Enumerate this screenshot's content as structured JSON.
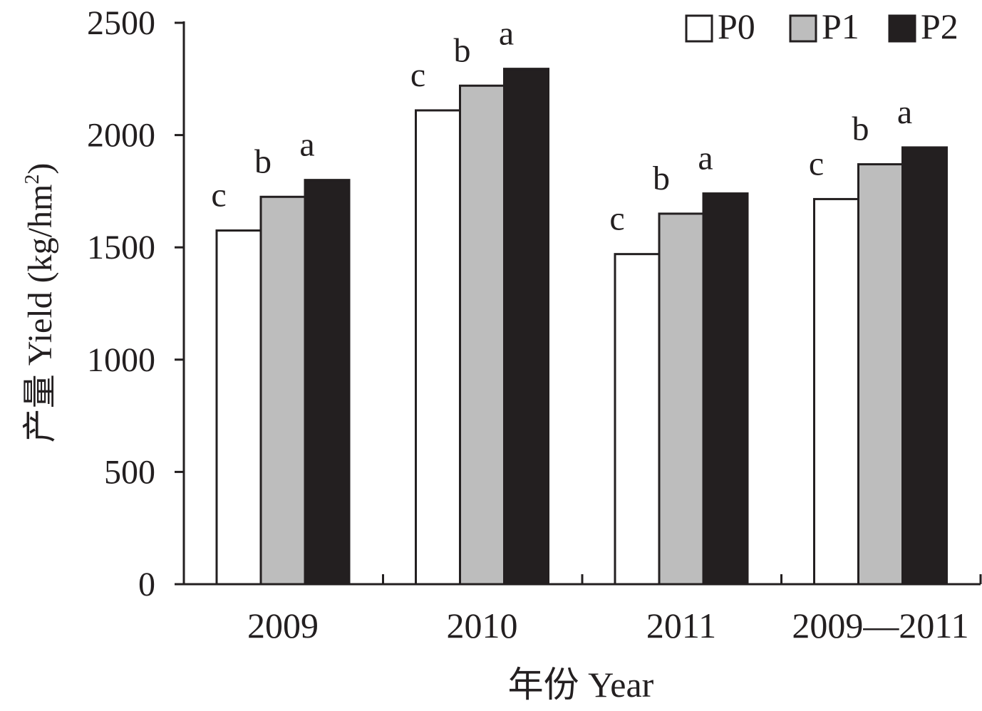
{
  "chart_data": {
    "type": "bar",
    "title": "",
    "xlabel": "年份 Year",
    "ylabel_prefix": "产量 Yield (kg/hm",
    "ylabel_sup": "2",
    "ylabel_suffix": ")",
    "ylim": [
      0,
      2500
    ],
    "yticks": [
      0,
      500,
      1000,
      1500,
      2000,
      2500
    ],
    "categories": [
      "2009",
      "2010",
      "2011",
      "2009—2011"
    ],
    "series": [
      {
        "name": "P0",
        "fill": "#ffffff",
        "values": [
          1575,
          2110,
          1470,
          1715
        ],
        "letters": [
          "c",
          "c",
          "c",
          "c"
        ]
      },
      {
        "name": "P1",
        "fill": "#bdbdbd",
        "values": [
          1725,
          2220,
          1650,
          1870
        ],
        "letters": [
          "b",
          "b",
          "b",
          "b"
        ]
      },
      {
        "name": "P2",
        "fill": "#231f20",
        "values": [
          1800,
          2295,
          1740,
          1945
        ],
        "letters": [
          "a",
          "a",
          "a",
          "a"
        ]
      }
    ],
    "legend_position": "top-right",
    "grid": false
  }
}
